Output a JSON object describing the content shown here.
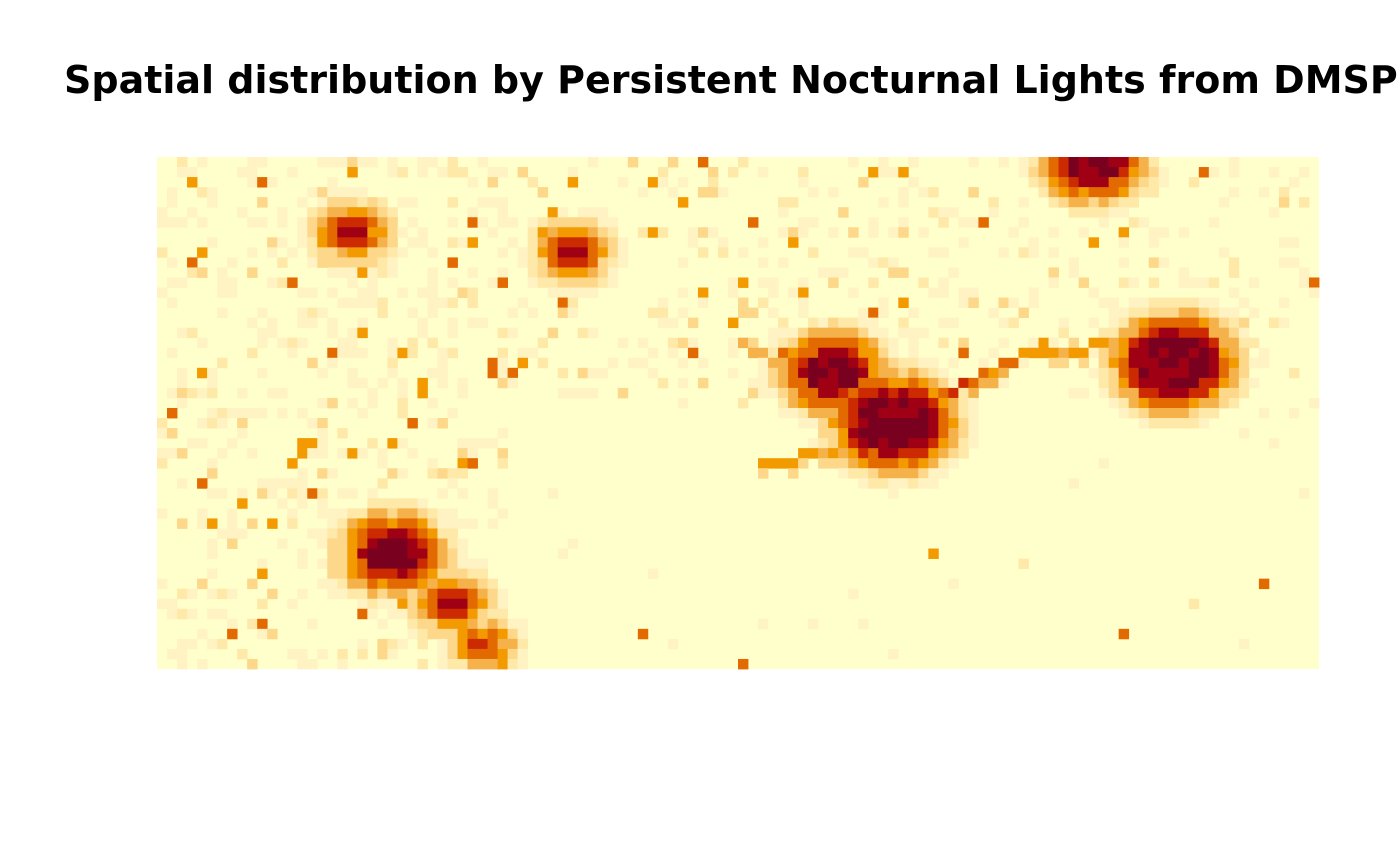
{
  "title": "Spatial distribution by Persistent Nocturnal Lights from DMSP",
  "palette": {
    "background": "#ffffcc",
    "levels": [
      "#ffffcc",
      "#fff3c4",
      "#ffe9a8",
      "#fdd78a",
      "#f6b24a",
      "#f29a00",
      "#e26a00",
      "#cc2a00",
      "#a00014",
      "#7a0020"
    ]
  },
  "chart_data": {
    "type": "heatmap",
    "title": "Spatial distribution by Persistent Nocturnal Lights from DMSP",
    "grid": {
      "cols": 116,
      "rows": 51
    },
    "value_range": [
      0,
      9
    ],
    "hotspots": [
      {
        "col": 73,
        "row": 26,
        "level": 9,
        "radius": 5
      },
      {
        "col": 67,
        "row": 21,
        "level": 9,
        "radius": 3
      },
      {
        "col": 101,
        "row": 20,
        "level": 9,
        "radius": 5
      },
      {
        "col": 23,
        "row": 39,
        "level": 9,
        "radius": 3
      },
      {
        "col": 93,
        "row": 0,
        "level": 9,
        "radius": 3
      },
      {
        "col": 29,
        "row": 44,
        "level": 8,
        "radius": 1
      },
      {
        "col": 32,
        "row": 48,
        "level": 7,
        "radius": 1
      },
      {
        "col": 19,
        "row": 7,
        "level": 8,
        "radius": 1
      },
      {
        "col": 41,
        "row": 9,
        "level": 8,
        "radius": 1
      }
    ],
    "corridors": [
      {
        "from": [
          74,
          25
        ],
        "to": [
          80,
          22
        ],
        "level": 7
      },
      {
        "from": [
          80,
          22
        ],
        "to": [
          88,
          18
        ],
        "level": 6
      },
      {
        "from": [
          88,
          19
        ],
        "to": [
          96,
          18
        ],
        "level": 5
      },
      {
        "from": [
          73,
          28
        ],
        "to": [
          60,
          30
        ],
        "level": 5
      },
      {
        "from": [
          66,
          22
        ],
        "to": [
          58,
          18
        ],
        "level": 4
      }
    ]
  }
}
